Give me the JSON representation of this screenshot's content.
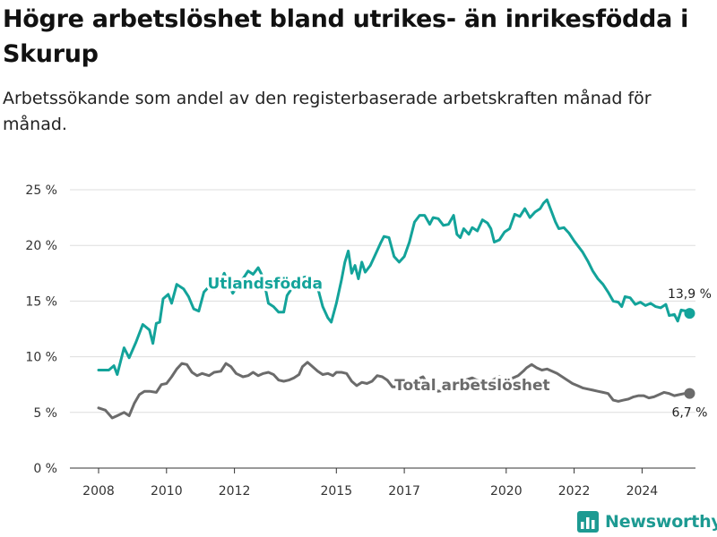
{
  "title": "Högre arbetslöshet bland utrikes- än inrikesfödda i Skurup",
  "subtitle": "Arbetssökande som andel av den registerbaserade arbetskraften månad för månad.",
  "brand": "Newsworthy",
  "colors": {
    "foreign": "#13a39a",
    "total": "#6b6b6b",
    "grid": "#dddddd",
    "brand": "#1d9a92"
  },
  "chart_data": {
    "type": "line",
    "x_unit": "year (decimal, monthly observations)",
    "xlim": [
      2008,
      2025.4
    ],
    "ylim": [
      0,
      25
    ],
    "y_ticks": [
      0,
      5,
      10,
      15,
      20,
      25
    ],
    "y_tick_labels": [
      "0 %",
      "5 %",
      "10 %",
      "15 %",
      "20 %",
      "25 %"
    ],
    "x_ticks": [
      2008,
      2010,
      2012,
      2015,
      2017,
      2020,
      2022,
      2024
    ],
    "grid": true,
    "legend": "none (series labelled directly on the lines)",
    "series": [
      {
        "name": "Utlandsfödda",
        "color": "#13a39a",
        "label_at": [
          2012.9,
          16.1
        ],
        "end_label": "13,9 %",
        "points": [
          [
            2008.0,
            8.8
          ],
          [
            2008.3,
            8.8
          ],
          [
            2008.45,
            9.2
          ],
          [
            2008.55,
            8.4
          ],
          [
            2008.75,
            10.8
          ],
          [
            2008.9,
            9.9
          ],
          [
            2009.1,
            11.3
          ],
          [
            2009.3,
            12.9
          ],
          [
            2009.5,
            12.4
          ],
          [
            2009.6,
            11.2
          ],
          [
            2009.7,
            13.0
          ],
          [
            2009.8,
            13.1
          ],
          [
            2009.9,
            15.2
          ],
          [
            2010.05,
            15.6
          ],
          [
            2010.15,
            14.8
          ],
          [
            2010.3,
            16.5
          ],
          [
            2010.5,
            16.1
          ],
          [
            2010.65,
            15.4
          ],
          [
            2010.8,
            14.3
          ],
          [
            2010.95,
            14.1
          ],
          [
            2011.1,
            15.8
          ],
          [
            2011.25,
            16.3
          ],
          [
            2011.4,
            16.0
          ],
          [
            2011.55,
            16.5
          ],
          [
            2011.7,
            17.5
          ],
          [
            2011.85,
            16.4
          ],
          [
            2011.95,
            15.7
          ],
          [
            2012.1,
            16.4
          ],
          [
            2012.25,
            17.0
          ],
          [
            2012.4,
            17.7
          ],
          [
            2012.55,
            17.4
          ],
          [
            2012.7,
            18.0
          ],
          [
            2012.85,
            17.1
          ],
          [
            2013.0,
            14.8
          ],
          [
            2013.15,
            14.5
          ],
          [
            2013.3,
            14.0
          ],
          [
            2013.45,
            14.0
          ],
          [
            2013.55,
            15.5
          ],
          [
            2013.7,
            16.2
          ],
          [
            2013.85,
            16.9
          ],
          [
            2014.0,
            17.1
          ],
          [
            2014.15,
            17.2
          ],
          [
            2014.3,
            16.5
          ],
          [
            2014.45,
            16.2
          ],
          [
            2014.6,
            14.5
          ],
          [
            2014.75,
            13.5
          ],
          [
            2014.85,
            13.1
          ],
          [
            2015.0,
            14.8
          ],
          [
            2015.15,
            16.9
          ],
          [
            2015.25,
            18.5
          ],
          [
            2015.35,
            19.5
          ],
          [
            2015.45,
            17.5
          ],
          [
            2015.55,
            18.2
          ],
          [
            2015.65,
            17.0
          ],
          [
            2015.75,
            18.5
          ],
          [
            2015.85,
            17.6
          ],
          [
            2016.0,
            18.2
          ],
          [
            2016.15,
            19.2
          ],
          [
            2016.3,
            20.2
          ],
          [
            2016.4,
            20.8
          ],
          [
            2016.55,
            20.7
          ],
          [
            2016.7,
            19.0
          ],
          [
            2016.85,
            18.5
          ],
          [
            2017.0,
            19.0
          ],
          [
            2017.15,
            20.3
          ],
          [
            2017.3,
            22.1
          ],
          [
            2017.45,
            22.7
          ],
          [
            2017.6,
            22.7
          ],
          [
            2017.75,
            21.9
          ],
          [
            2017.85,
            22.5
          ],
          [
            2018.0,
            22.4
          ],
          [
            2018.15,
            21.8
          ],
          [
            2018.3,
            21.9
          ],
          [
            2018.45,
            22.7
          ],
          [
            2018.55,
            21.0
          ],
          [
            2018.65,
            20.7
          ],
          [
            2018.75,
            21.5
          ],
          [
            2018.9,
            21.0
          ],
          [
            2019.0,
            21.6
          ],
          [
            2019.15,
            21.3
          ],
          [
            2019.3,
            22.3
          ],
          [
            2019.45,
            22.0
          ],
          [
            2019.55,
            21.5
          ],
          [
            2019.65,
            20.3
          ],
          [
            2019.8,
            20.5
          ],
          [
            2019.95,
            21.2
          ],
          [
            2020.1,
            21.5
          ],
          [
            2020.25,
            22.8
          ],
          [
            2020.4,
            22.6
          ],
          [
            2020.55,
            23.3
          ],
          [
            2020.7,
            22.5
          ],
          [
            2020.85,
            23.0
          ],
          [
            2021.0,
            23.3
          ],
          [
            2021.1,
            23.8
          ],
          [
            2021.2,
            24.1
          ],
          [
            2021.3,
            23.3
          ],
          [
            2021.45,
            22.1
          ],
          [
            2021.55,
            21.5
          ],
          [
            2021.7,
            21.6
          ],
          [
            2021.85,
            21.1
          ],
          [
            2022.0,
            20.4
          ],
          [
            2022.1,
            20.0
          ],
          [
            2022.25,
            19.4
          ],
          [
            2022.4,
            18.6
          ],
          [
            2022.55,
            17.7
          ],
          [
            2022.7,
            17.0
          ],
          [
            2022.85,
            16.5
          ],
          [
            2023.0,
            15.8
          ],
          [
            2023.15,
            15.0
          ],
          [
            2023.3,
            14.9
          ],
          [
            2023.4,
            14.5
          ],
          [
            2023.5,
            15.4
          ],
          [
            2023.65,
            15.3
          ],
          [
            2023.8,
            14.7
          ],
          [
            2023.95,
            14.9
          ],
          [
            2024.1,
            14.6
          ],
          [
            2024.25,
            14.8
          ],
          [
            2024.4,
            14.5
          ],
          [
            2024.55,
            14.4
          ],
          [
            2024.7,
            14.7
          ],
          [
            2024.8,
            13.7
          ],
          [
            2024.95,
            13.8
          ],
          [
            2025.05,
            13.2
          ],
          [
            2025.15,
            14.2
          ],
          [
            2025.3,
            14.1
          ],
          [
            2025.4,
            13.9
          ]
        ]
      },
      {
        "name": "Total arbetslöshet",
        "color": "#6b6b6b",
        "label_at": [
          2019.0,
          7.0
        ],
        "end_label": "6,7 %",
        "points": [
          [
            2008.0,
            5.4
          ],
          [
            2008.2,
            5.2
          ],
          [
            2008.4,
            4.5
          ],
          [
            2008.55,
            4.7
          ],
          [
            2008.75,
            5.0
          ],
          [
            2008.9,
            4.7
          ],
          [
            2009.05,
            5.8
          ],
          [
            2009.2,
            6.6
          ],
          [
            2009.35,
            6.9
          ],
          [
            2009.5,
            6.9
          ],
          [
            2009.7,
            6.8
          ],
          [
            2009.85,
            7.5
          ],
          [
            2010.0,
            7.6
          ],
          [
            2010.15,
            8.2
          ],
          [
            2010.3,
            8.9
          ],
          [
            2010.45,
            9.4
          ],
          [
            2010.6,
            9.3
          ],
          [
            2010.75,
            8.6
          ],
          [
            2010.9,
            8.3
          ],
          [
            2011.05,
            8.5
          ],
          [
            2011.25,
            8.3
          ],
          [
            2011.4,
            8.6
          ],
          [
            2011.6,
            8.7
          ],
          [
            2011.75,
            9.4
          ],
          [
            2011.9,
            9.1
          ],
          [
            2012.05,
            8.5
          ],
          [
            2012.25,
            8.2
          ],
          [
            2012.4,
            8.3
          ],
          [
            2012.55,
            8.6
          ],
          [
            2012.7,
            8.3
          ],
          [
            2012.85,
            8.5
          ],
          [
            2013.0,
            8.6
          ],
          [
            2013.15,
            8.4
          ],
          [
            2013.3,
            7.9
          ],
          [
            2013.45,
            7.8
          ],
          [
            2013.6,
            7.9
          ],
          [
            2013.75,
            8.1
          ],
          [
            2013.9,
            8.4
          ],
          [
            2014.0,
            9.1
          ],
          [
            2014.15,
            9.5
          ],
          [
            2014.3,
            9.1
          ],
          [
            2014.45,
            8.7
          ],
          [
            2014.6,
            8.4
          ],
          [
            2014.75,
            8.5
          ],
          [
            2014.9,
            8.3
          ],
          [
            2015.0,
            8.6
          ],
          [
            2015.15,
            8.6
          ],
          [
            2015.3,
            8.5
          ],
          [
            2015.45,
            7.8
          ],
          [
            2015.6,
            7.4
          ],
          [
            2015.75,
            7.7
          ],
          [
            2015.9,
            7.6
          ],
          [
            2016.05,
            7.8
          ],
          [
            2016.2,
            8.3
          ],
          [
            2016.35,
            8.2
          ],
          [
            2016.5,
            7.9
          ],
          [
            2016.65,
            7.3
          ],
          [
            2016.8,
            7.3
          ],
          [
            2016.95,
            7.5
          ],
          [
            2017.1,
            7.6
          ],
          [
            2017.25,
            7.8
          ],
          [
            2017.4,
            8.0
          ],
          [
            2017.55,
            8.2
          ],
          [
            2017.7,
            7.5
          ],
          [
            2017.85,
            7.2
          ],
          [
            2018.0,
            6.9
          ],
          [
            2018.2,
            7.0
          ],
          [
            2018.4,
            7.3
          ],
          [
            2018.6,
            7.6
          ],
          [
            2018.8,
            7.9
          ],
          [
            2019.0,
            8.1
          ],
          [
            2019.2,
            7.8
          ],
          [
            2019.4,
            7.6
          ],
          [
            2019.6,
            7.9
          ],
          [
            2019.8,
            8.2
          ],
          [
            2020.0,
            7.9
          ],
          [
            2020.2,
            8.1
          ],
          [
            2020.35,
            8.3
          ],
          [
            2020.5,
            8.7
          ],
          [
            2020.6,
            9.0
          ],
          [
            2020.75,
            9.3
          ],
          [
            2020.9,
            9.0
          ],
          [
            2021.05,
            8.8
          ],
          [
            2021.2,
            8.9
          ],
          [
            2021.35,
            8.7
          ],
          [
            2021.5,
            8.5
          ],
          [
            2021.65,
            8.2
          ],
          [
            2021.8,
            7.9
          ],
          [
            2021.95,
            7.6
          ],
          [
            2022.1,
            7.4
          ],
          [
            2022.25,
            7.2
          ],
          [
            2022.4,
            7.1
          ],
          [
            2022.55,
            7.0
          ],
          [
            2022.7,
            6.9
          ],
          [
            2022.85,
            6.8
          ],
          [
            2023.0,
            6.7
          ],
          [
            2023.15,
            6.1
          ],
          [
            2023.3,
            6.0
          ],
          [
            2023.45,
            6.1
          ],
          [
            2023.6,
            6.2
          ],
          [
            2023.75,
            6.4
          ],
          [
            2023.9,
            6.5
          ],
          [
            2024.05,
            6.5
          ],
          [
            2024.2,
            6.3
          ],
          [
            2024.35,
            6.4
          ],
          [
            2024.5,
            6.6
          ],
          [
            2024.65,
            6.8
          ],
          [
            2024.8,
            6.7
          ],
          [
            2024.95,
            6.5
          ],
          [
            2025.1,
            6.6
          ],
          [
            2025.25,
            6.7
          ],
          [
            2025.4,
            6.7
          ]
        ]
      }
    ]
  }
}
